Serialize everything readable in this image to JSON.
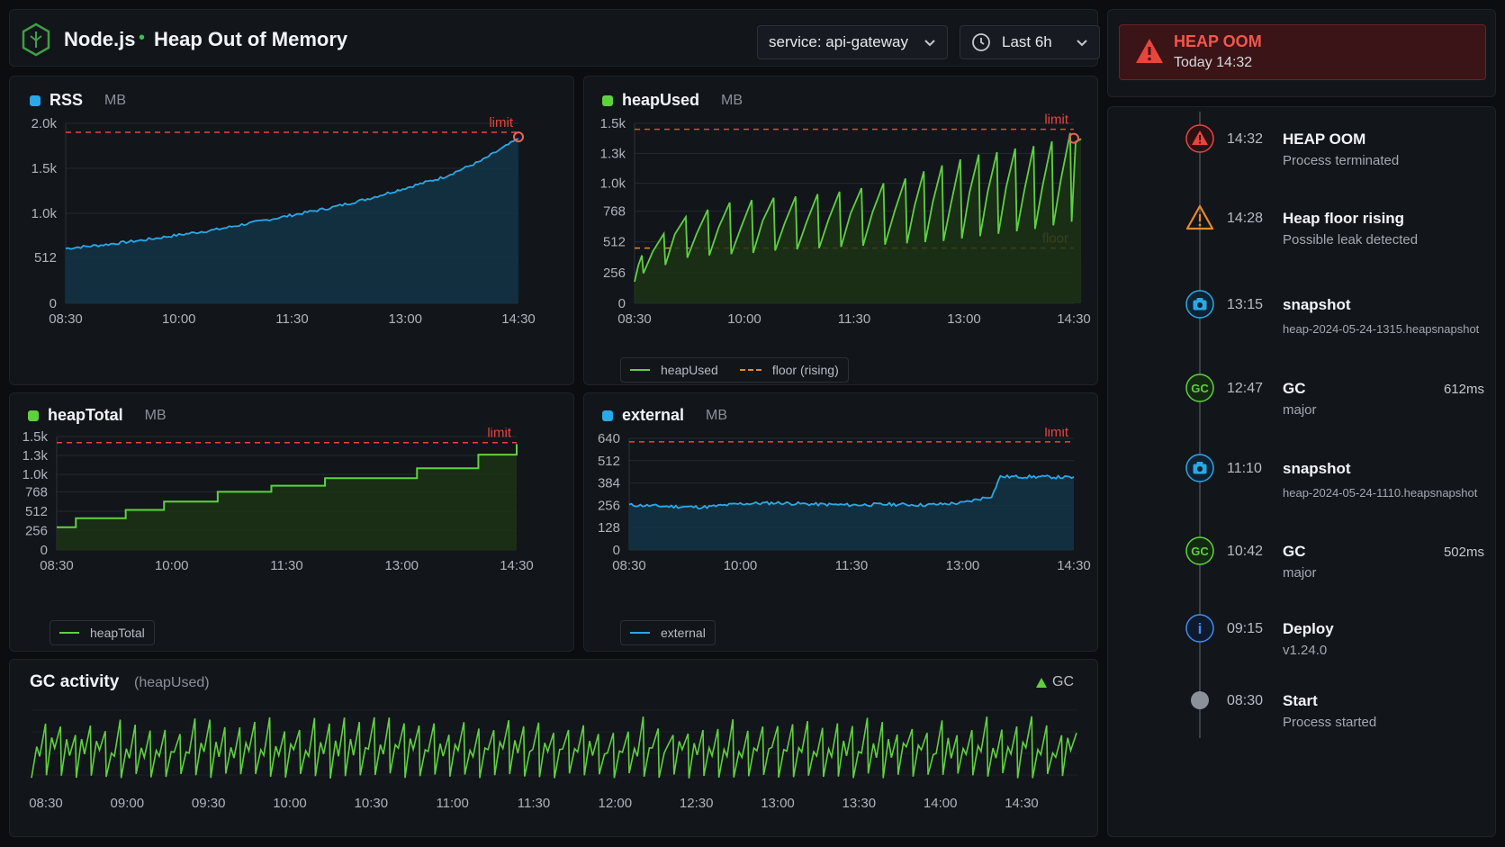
{
  "header": {
    "app_name": "Node.js",
    "separator": "•",
    "page_title": "Heap Out of Memory",
    "service_select": "service: api-gateway",
    "time_select": "Last 6h"
  },
  "alert": {
    "title": "HEAP OOM",
    "time": "Today 14:32"
  },
  "timeline": [
    {
      "time": "14:32",
      "title": "HEAP OOM",
      "sub": "Process terminated",
      "right": "",
      "icon": "error-triangle-icon"
    },
    {
      "time": "14:28",
      "title": "Heap floor rising",
      "sub": "Possible leak detected",
      "right": "",
      "icon": "warning-triangle-icon"
    },
    {
      "time": "13:15",
      "title": "snapshot",
      "sub": "heap-2024-05-24-1315.heapsnapshot",
      "right": "",
      "icon": "camera-icon"
    },
    {
      "time": "12:47",
      "title": "GC",
      "sub": "major",
      "right": "612ms",
      "icon": "gc-icon",
      "icon_text": "GC"
    },
    {
      "time": "11:10",
      "title": "snapshot",
      "sub": "heap-2024-05-24-1110.heapsnapshot",
      "right": "",
      "icon": "camera-icon"
    },
    {
      "time": "10:42",
      "title": "GC",
      "sub": "major",
      "right": "502ms",
      "icon": "gc-icon",
      "icon_text": "GC"
    },
    {
      "time": "09:15",
      "title": "Deploy",
      "sub": "v1.24.0",
      "right": "",
      "icon": "info-icon",
      "icon_text": "i"
    },
    {
      "time": "08:30",
      "title": "Start",
      "sub": "Process started",
      "right": "",
      "icon": "start-dot-icon"
    }
  ],
  "colors": {
    "blue": "#29a9e6",
    "green": "#5fd13f",
    "red": "#e8453c",
    "orange": "#e8892b"
  },
  "chart_data": [
    {
      "id": "rss",
      "type": "area",
      "title": "RSS",
      "unit": "MB",
      "x_ticks": [
        "08:30",
        "10:00",
        "11:30",
        "13:00",
        "14:30"
      ],
      "y_ticks": [
        "2.0k",
        "1.5k",
        "1.0k",
        "512",
        "0"
      ],
      "y_tick_values": [
        2000,
        1500,
        1000,
        512,
        0
      ],
      "ylim": [
        0,
        2000
      ],
      "limit": 1900,
      "limit_label": "limit",
      "x_hours": [
        8.5,
        9.0,
        9.5,
        10.0,
        10.5,
        11.0,
        11.5,
        12.0,
        12.5,
        13.0,
        13.5,
        14.0,
        14.5
      ],
      "values": [
        610,
        650,
        700,
        760,
        820,
        900,
        980,
        1060,
        1160,
        1280,
        1400,
        1580,
        1830
      ]
    },
    {
      "id": "heapUsed",
      "type": "line",
      "title": "heapUsed",
      "unit": "MB",
      "x_ticks": [
        "08:30",
        "10:00",
        "11:30",
        "13:00",
        "14:30"
      ],
      "y_ticks": [
        "1.5k",
        "1.3k",
        "1.0k",
        "768",
        "512",
        "256",
        "0"
      ],
      "y_tick_values": [
        1500,
        1250,
        1000,
        768,
        512,
        256,
        0
      ],
      "ylim": [
        0,
        1500
      ],
      "limit": 1450,
      "limit_label": "limit",
      "floor": 460,
      "floor_label": "floor",
      "legend": [
        "heapUsed",
        "floor (rising)"
      ],
      "sawtooth_peaks": [
        [
          8.6,
          400
        ],
        [
          8.9,
          580
        ],
        [
          9.2,
          720
        ],
        [
          9.5,
          780
        ],
        [
          9.8,
          840
        ],
        [
          10.1,
          860
        ],
        [
          10.4,
          880
        ],
        [
          10.7,
          890
        ],
        [
          11.0,
          910
        ],
        [
          11.3,
          930
        ],
        [
          11.6,
          960
        ],
        [
          11.9,
          1000
        ],
        [
          12.2,
          1040
        ],
        [
          12.45,
          1100
        ],
        [
          12.7,
          1150
        ],
        [
          12.95,
          1200
        ],
        [
          13.2,
          1240
        ],
        [
          13.45,
          1260
        ],
        [
          13.7,
          1290
        ],
        [
          13.95,
          1310
        ],
        [
          14.2,
          1350
        ],
        [
          14.45,
          1420
        ],
        [
          14.6,
          1370
        ]
      ],
      "sawtooth_troughs": [
        250,
        320,
        380,
        400,
        410,
        420,
        440,
        450,
        460,
        470,
        480,
        490,
        500,
        510,
        520,
        540,
        560,
        580,
        600,
        620,
        650,
        680,
        1280
      ]
    },
    {
      "id": "heapTotal",
      "type": "step",
      "title": "heapTotal",
      "unit": "MB",
      "legend": [
        "heapTotal"
      ],
      "x_ticks": [
        "08:30",
        "10:00",
        "11:30",
        "13:00",
        "14:30"
      ],
      "y_ticks": [
        "1.5k",
        "1.3k",
        "1.0k",
        "768",
        "512",
        "256",
        "0"
      ],
      "y_tick_values": [
        1500,
        1250,
        1000,
        768,
        512,
        256,
        0
      ],
      "ylim": [
        0,
        1500
      ],
      "limit": 1420,
      "limit_label": "limit",
      "steps": [
        [
          8.5,
          300
        ],
        [
          8.75,
          420
        ],
        [
          9.4,
          530
        ],
        [
          9.9,
          640
        ],
        [
          10.6,
          770
        ],
        [
          11.3,
          850
        ],
        [
          12.0,
          950
        ],
        [
          13.2,
          1080
        ],
        [
          14.0,
          1260
        ],
        [
          14.5,
          1400
        ]
      ]
    },
    {
      "id": "external",
      "type": "area",
      "title": "external",
      "unit": "MB",
      "legend": [
        "external"
      ],
      "x_ticks": [
        "08:30",
        "10:00",
        "11:30",
        "13:00",
        "14:30"
      ],
      "y_ticks": [
        "640",
        "512",
        "384",
        "256",
        "128",
        "0"
      ],
      "y_tick_values": [
        640,
        512,
        384,
        256,
        128,
        0
      ],
      "ylim": [
        0,
        640
      ],
      "limit": 620,
      "limit_label": "limit",
      "x_hours": [
        8.5,
        9.0,
        9.5,
        10.0,
        10.5,
        11.0,
        11.5,
        12.0,
        12.5,
        13.0,
        13.4,
        13.5,
        14.0,
        14.5
      ],
      "values": [
        258,
        250,
        245,
        265,
        270,
        262,
        258,
        262,
        258,
        270,
        310,
        420,
        420,
        415
      ]
    },
    {
      "id": "gc",
      "type": "line",
      "title": "GC activity",
      "subtitle": "(heapUsed)",
      "legend": [
        "GC"
      ],
      "x_ticks": [
        "08:30",
        "09:00",
        "09:30",
        "10:00",
        "10:30",
        "11:00",
        "11:30",
        "12:00",
        "12:30",
        "13:00",
        "13:30",
        "14:00",
        "14:30"
      ],
      "cycles_count": 70
    }
  ]
}
